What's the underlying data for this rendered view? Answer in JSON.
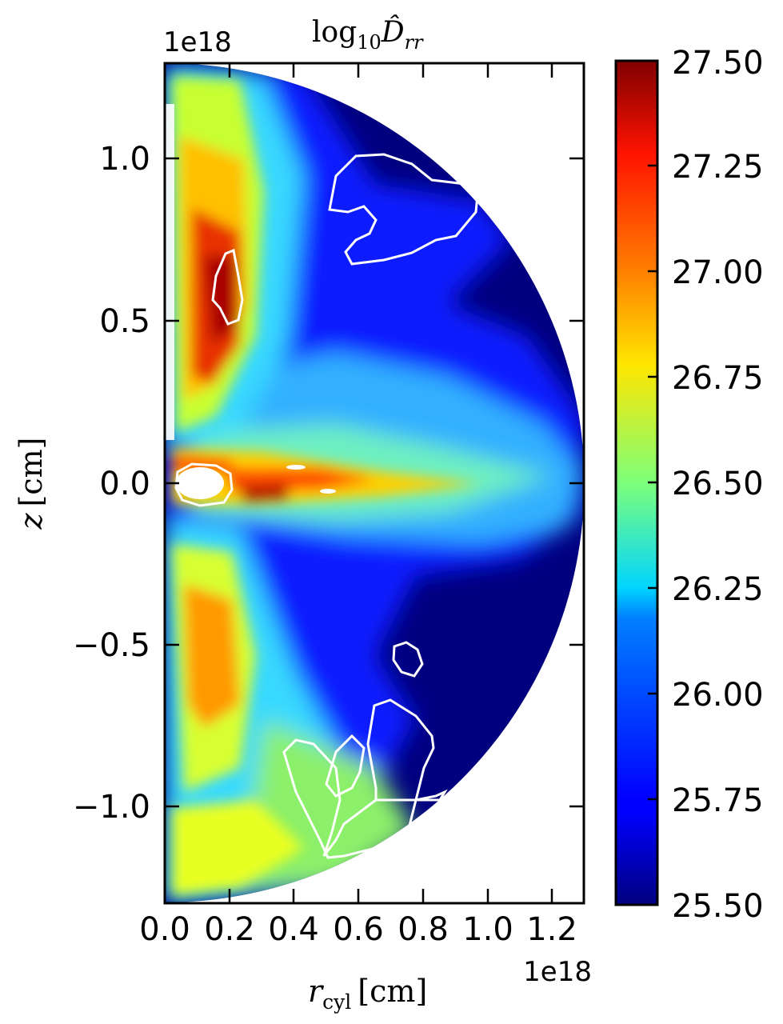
{
  "chart_data": {
    "type": "heatmap",
    "title": "log₁₀D̂ᵣᵣ",
    "title_parts": {
      "base": "log",
      "sub": "10",
      "symbol": "D̂",
      "symbol_sub": "rr"
    },
    "xlabel": "r_cyl [cm]",
    "xlabel_parts": {
      "symbol": "r",
      "sub": "cyl",
      "unit": "[cm]"
    },
    "ylabel": "z [cm]",
    "ylabel_parts": {
      "symbol": "z",
      "unit": "[cm]"
    },
    "x_offset_text": "1e18",
    "y_offset_text": "1e18",
    "xlim": [
      0.0,
      1.3
    ],
    "ylim": [
      -1.3,
      1.3
    ],
    "x_ticks": [
      0.0,
      0.2,
      0.4,
      0.6,
      0.8,
      1.0,
      1.2
    ],
    "x_tick_labels": [
      "0.0",
      "0.2",
      "0.4",
      "0.6",
      "0.8",
      "1.0",
      "1.2"
    ],
    "y_ticks": [
      1.0,
      0.5,
      0.0,
      -0.5,
      -1.0
    ],
    "y_tick_labels": [
      "1.0",
      "0.5",
      "0.0",
      "−0.5",
      "−1.0"
    ],
    "domain": "half-disk of radius 1.3e18 cm centered at origin",
    "colormap": "jet",
    "colorbar": {
      "min": 25.5,
      "max": 27.5,
      "ticks": [
        27.5,
        27.25,
        27.0,
        26.75,
        26.5,
        26.25,
        26.0,
        25.75,
        25.5
      ],
      "tick_labels": [
        "27.50",
        "27.25",
        "27.00",
        "26.75",
        "26.50",
        "26.25",
        "26.00",
        "25.75",
        "25.50"
      ]
    },
    "features": [
      {
        "region": "upper polar jet",
        "value_range": [
          26.75,
          27.5
        ]
      },
      {
        "region": "equatorial outflow",
        "value_range": [
          26.0,
          27.0
        ]
      },
      {
        "region": "lower polar jet",
        "value_range": [
          26.5,
          27.1
        ]
      },
      {
        "region": "outer background",
        "value_range": [
          25.5,
          25.6
        ]
      }
    ],
    "contour_color": "#ffffff",
    "grid": false
  }
}
